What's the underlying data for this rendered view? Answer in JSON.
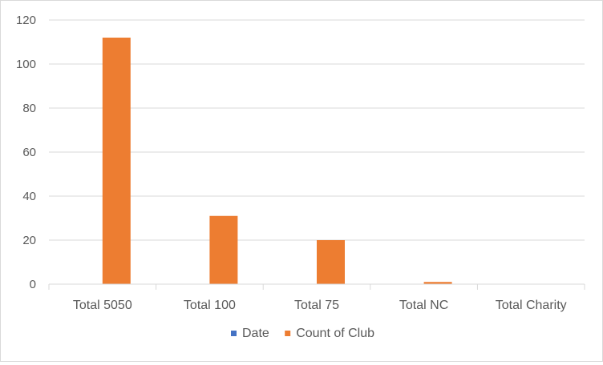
{
  "chart_data": {
    "type": "bar",
    "title": "",
    "xlabel": "",
    "ylabel": "",
    "categories": [
      "Total 5050",
      "Total 100",
      "Total 75",
      "Total NC",
      "Total Charity"
    ],
    "series": [
      {
        "name": "Date",
        "color": "#4472c4",
        "values": [
          0,
          0,
          0,
          0,
          0
        ]
      },
      {
        "name": "Count of Club",
        "color": "#ed7d31",
        "values": [
          112,
          31,
          20,
          1,
          0
        ]
      }
    ],
    "ylim": [
      0,
      120
    ],
    "yticks": [
      0,
      20,
      40,
      60,
      80,
      100,
      120
    ],
    "grid": true,
    "legend_position": "bottom"
  }
}
